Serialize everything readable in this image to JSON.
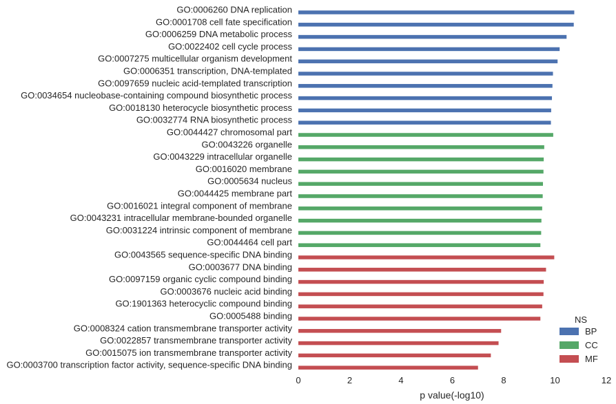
{
  "chart_data": {
    "type": "bar",
    "orientation": "horizontal",
    "xlabel": "p value(-log10)",
    "ylabel": "",
    "xlim": [
      0,
      12
    ],
    "xticks": [
      "0",
      "2",
      "4",
      "6",
      "8",
      "10",
      "12"
    ],
    "grid": false,
    "legend": {
      "title": "NS",
      "placement": "bottom-right",
      "entries": [
        {
          "name": "BP",
          "color": "#4c72b0"
        },
        {
          "name": "CC",
          "color": "#55a868"
        },
        {
          "name": "MF",
          "color": "#c44e52"
        }
      ]
    },
    "categories": [
      "GO:0006260 DNA replication",
      "GO:0001708 cell fate specification",
      "GO:0006259 DNA metabolic process",
      "GO:0022402 cell cycle process",
      "GO:0007275 multicellular organism development",
      "GO:0006351 transcription, DNA-templated",
      "GO:0097659 nucleic acid-templated transcription",
      "GO:0034654 nucleobase-containing compound biosynthetic process",
      "GO:0018130 heterocycle biosynthetic process",
      "GO:0032774 RNA biosynthetic process",
      "GO:0044427 chromosomal part",
      "GO:0043226 organelle",
      "GO:0043229 intracellular organelle",
      "GO:0016020 membrane",
      "GO:0005634 nucleus",
      "GO:0044425 membrane part",
      "GO:0016021 integral component of membrane",
      "GO:0043231 intracellular membrane-bounded organelle",
      "GO:0031224 intrinsic component of membrane",
      "GO:0044464 cell part",
      "GO:0043565 sequence-specific DNA binding",
      "GO:0003677 DNA binding",
      "GO:0097159 organic cyclic compound binding",
      "GO:0003676 nucleic acid binding",
      "GO:1901363 heterocyclic compound binding",
      "GO:0005488 binding",
      "GO:0008324 cation transmembrane transporter activity",
      "GO:0022857 transmembrane transporter activity",
      "GO:0015075 ion transmembrane transporter activity",
      "GO:0003700 transcription factor activity, sequence-specific DNA binding"
    ],
    "groups": [
      "BP",
      "BP",
      "BP",
      "BP",
      "BP",
      "BP",
      "BP",
      "BP",
      "BP",
      "BP",
      "CC",
      "CC",
      "CC",
      "CC",
      "CC",
      "CC",
      "CC",
      "CC",
      "CC",
      "CC",
      "MF",
      "MF",
      "MF",
      "MF",
      "MF",
      "MF",
      "MF",
      "MF",
      "MF",
      "MF"
    ],
    "values": [
      10.75,
      10.73,
      10.45,
      10.18,
      10.1,
      9.92,
      9.9,
      9.88,
      9.85,
      9.84,
      9.93,
      9.58,
      9.56,
      9.55,
      9.53,
      9.52,
      9.5,
      9.47,
      9.46,
      9.43,
      9.97,
      9.65,
      9.56,
      9.55,
      9.5,
      9.43,
      7.9,
      7.8,
      7.5,
      7.0
    ]
  }
}
